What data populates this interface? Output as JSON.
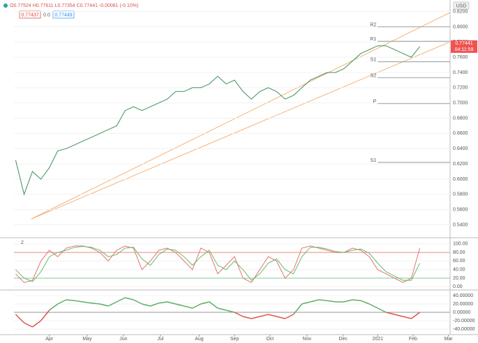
{
  "chart_data": [
    {
      "type": "line",
      "title": "O0.77524 H0.77611 L0.77354 C0.77441 -0.00081 (-0.10%)",
      "currency": "USD",
      "bid": "0.77437",
      "spread": "0.0",
      "ask": "0.77449",
      "last_label": "0.77441",
      "countdown": "04:11:59",
      "xlim": [
        -0.2,
        51.6
      ],
      "xticks": [
        {
          "value": 4,
          "label": "Apr"
        },
        {
          "value": 8.5,
          "label": "May"
        },
        {
          "value": 12.8,
          "label": "Jun"
        },
        {
          "value": 17.2,
          "label": "Jul"
        },
        {
          "value": 21.8,
          "label": "Aug"
        },
        {
          "value": 26,
          "label": "Sep"
        },
        {
          "value": 30.2,
          "label": "Oct"
        },
        {
          "value": 34.6,
          "label": "Nov"
        },
        {
          "value": 38.9,
          "label": "Dec"
        },
        {
          "value": 43,
          "label": "2021"
        },
        {
          "value": 47.2,
          "label": "Feb"
        },
        {
          "value": 51.4,
          "label": "Mar"
        }
      ],
      "ylim": [
        0.524,
        0.826
      ],
      "yticks": [
        {
          "value": 0.54,
          "label": "0.5400"
        },
        {
          "value": 0.56,
          "label": "0.5600"
        },
        {
          "value": 0.58,
          "label": "0.5800"
        },
        {
          "value": 0.6,
          "label": "0.6000"
        },
        {
          "value": 0.62,
          "label": "0.6200"
        },
        {
          "value": 0.64,
          "label": "0.6400"
        },
        {
          "value": 0.66,
          "label": "0.6600"
        },
        {
          "value": 0.68,
          "label": "0.6800"
        },
        {
          "value": 0.7,
          "label": "0.7000"
        },
        {
          "value": 0.72,
          "label": "0.7200"
        },
        {
          "value": 0.74,
          "label": "0.7400"
        },
        {
          "value": 0.76,
          "label": "0.7600"
        },
        {
          "value": 0.78,
          "label": "0.7800"
        },
        {
          "value": 0.8,
          "label": "0.8000"
        },
        {
          "value": 0.82,
          "label": "0.8200"
        }
      ],
      "series": [
        {
          "color": "#3d8f5a",
          "values": [
            0.625,
            0.58,
            0.61,
            0.6,
            0.615,
            0.637,
            0.64,
            0.645,
            0.65,
            0.655,
            0.66,
            0.665,
            0.67,
            0.69,
            0.695,
            0.69,
            0.695,
            0.7,
            0.705,
            0.715,
            0.715,
            0.72,
            0.72,
            0.725,
            0.735,
            0.725,
            0.73,
            0.715,
            0.705,
            0.715,
            0.72,
            0.715,
            0.705,
            0.71,
            0.72,
            0.73,
            0.735,
            0.74,
            0.74,
            0.745,
            0.755,
            0.765,
            0.77,
            0.775,
            0.775,
            0.77,
            0.765,
            0.76,
            0.774
          ]
        }
      ],
      "pivots": [
        {
          "label": "R2",
          "value": 0.8
        },
        {
          "label": "R1",
          "value": 0.781
        },
        {
          "label": "S1",
          "value": 0.754
        },
        {
          "label": "S2",
          "value": 0.733
        },
        {
          "label": "P",
          "value": 0.699
        },
        {
          "label": "S1",
          "value": 0.622
        }
      ]
    },
    {
      "type": "line",
      "legend": "2",
      "ylim": [
        -6,
        111
      ],
      "yticks": [
        {
          "value": 0,
          "label": "0.00"
        },
        {
          "value": 20,
          "label": "20.00"
        },
        {
          "value": 40,
          "label": "40.00"
        },
        {
          "value": 60,
          "label": "60.00"
        },
        {
          "value": 80,
          "label": "80.00"
        },
        {
          "value": 100,
          "label": "100.00"
        }
      ],
      "levels": [
        {
          "value": 80,
          "color": "#f28b82"
        },
        {
          "value": 20,
          "color": "#81c995"
        }
      ],
      "series": [
        {
          "color": "#e57373",
          "values": [
            30,
            10,
            15,
            60,
            85,
            70,
            90,
            95,
            95,
            90,
            80,
            60,
            85,
            95,
            90,
            40,
            60,
            85,
            90,
            80,
            60,
            40,
            90,
            80,
            30,
            50,
            70,
            20,
            10,
            40,
            70,
            60,
            20,
            40,
            90,
            95,
            90,
            85,
            80,
            80,
            90,
            85,
            70,
            40,
            30,
            20,
            10,
            20,
            90
          ]
        },
        {
          "color": "#66bb6a",
          "values": [
            40,
            20,
            12,
            35,
            70,
            80,
            85,
            92,
            94,
            92,
            85,
            70,
            75,
            90,
            92,
            65,
            50,
            75,
            88,
            85,
            70,
            50,
            70,
            85,
            50,
            40,
            60,
            40,
            15,
            30,
            55,
            65,
            40,
            30,
            70,
            92,
            92,
            88,
            82,
            80,
            85,
            88,
            78,
            55,
            35,
            25,
            15,
            15,
            55
          ]
        }
      ]
    },
    {
      "type": "osc",
      "ylim": [
        -50,
        50
      ],
      "yticks": [
        {
          "value": -40,
          "label": "-40.00000"
        },
        {
          "value": -20,
          "label": "-20.00000"
        },
        {
          "value": 0,
          "label": "0.00000"
        },
        {
          "value": 20,
          "label": "20.00000"
        },
        {
          "value": 40,
          "label": "40.00000"
        }
      ],
      "positive_color": "#5fae63",
      "negative_color": "#e0524c",
      "values": [
        -5,
        -25,
        -35,
        -20,
        5,
        20,
        30,
        28,
        25,
        22,
        20,
        15,
        25,
        35,
        30,
        20,
        15,
        22,
        25,
        20,
        15,
        10,
        20,
        25,
        10,
        5,
        0,
        -10,
        -15,
        -10,
        -5,
        -10,
        -15,
        -5,
        20,
        25,
        30,
        28,
        25,
        25,
        30,
        28,
        20,
        10,
        0,
        -5,
        -10,
        -15,
        0
      ]
    }
  ]
}
